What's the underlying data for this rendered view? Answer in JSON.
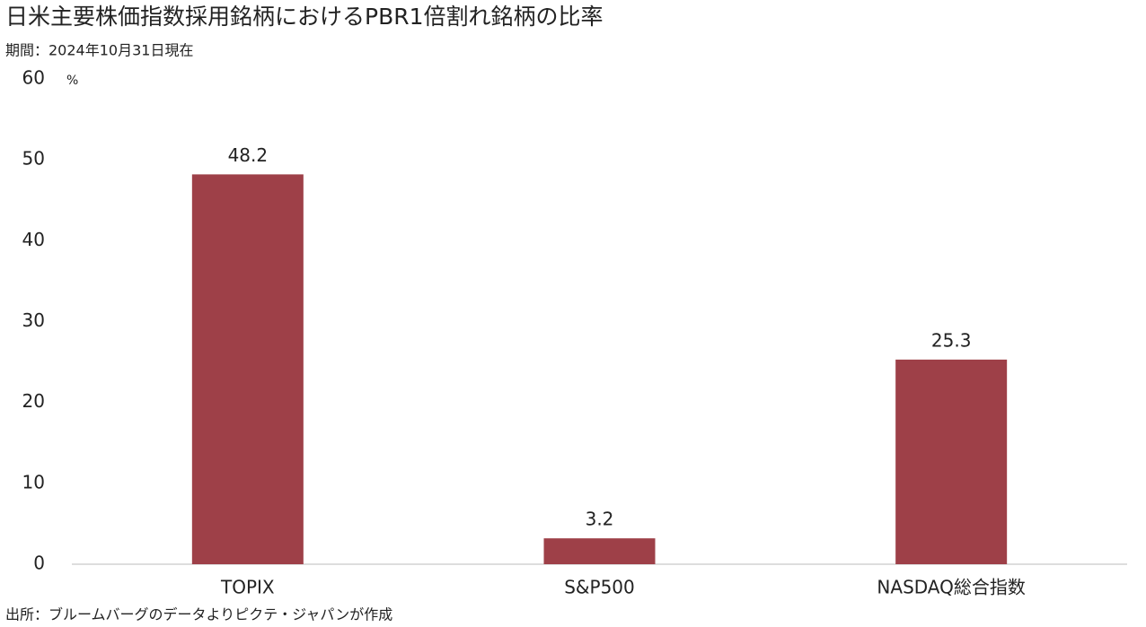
{
  "chart_data": {
    "type": "bar",
    "title": "日米主要株価指数採用銘柄におけるPBR1倍割れ銘柄の比率",
    "subtitle": "期間：2024年10月31日現在",
    "y_unit": "%",
    "source": "出所：ブルームバーグのデータよりピクテ・ジャパンが作成",
    "categories": [
      "TOPIX",
      "S&P500",
      "NASDAQ総合指数"
    ],
    "values": [
      48.2,
      3.2,
      25.3
    ],
    "color": "#9e4048",
    "ylim": [
      0,
      60
    ],
    "yticks": [
      0,
      10,
      20,
      30,
      40,
      50,
      60
    ],
    "grid": false,
    "data_labels": true
  }
}
